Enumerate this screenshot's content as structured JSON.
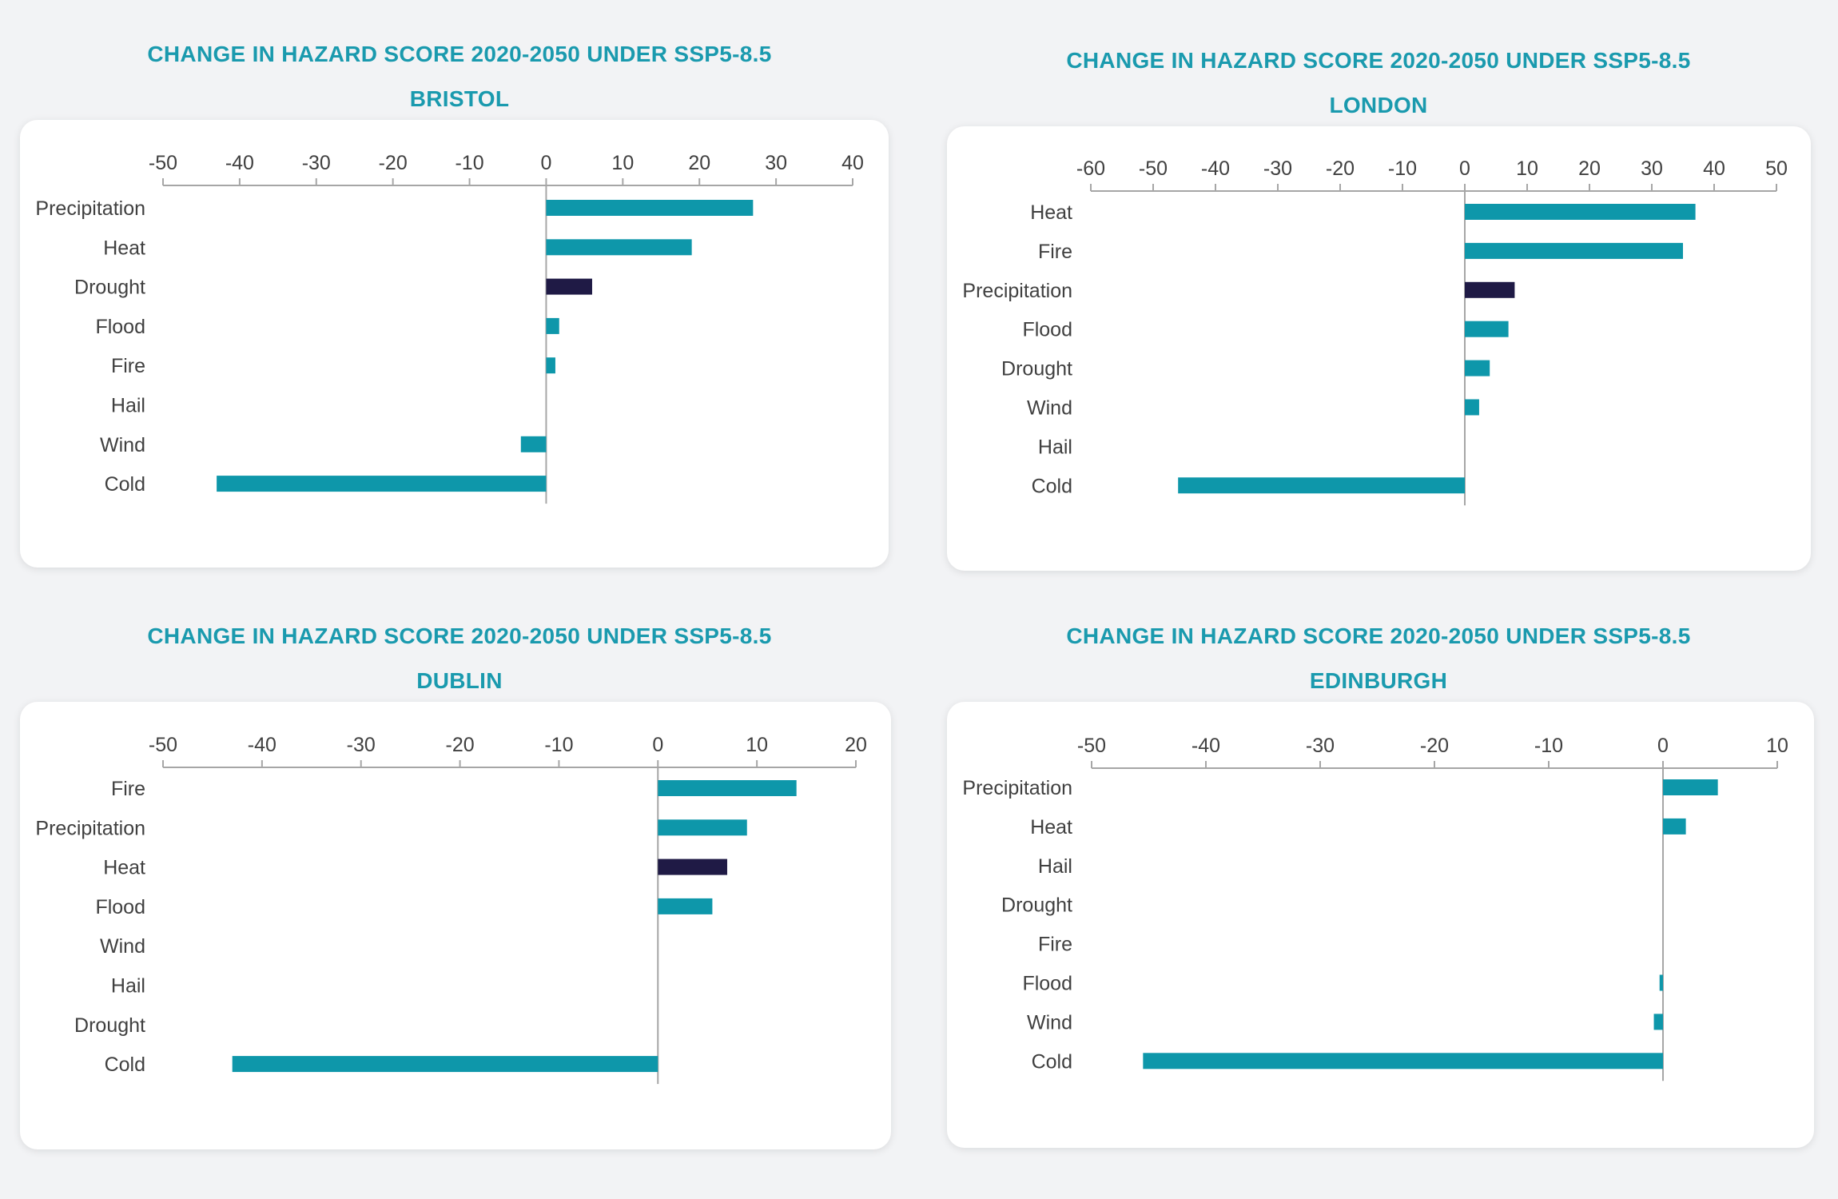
{
  "colors": {
    "title": "#1a9aae",
    "bar": "#0e97aa",
    "highlight": "#1f1a45",
    "axis": "#a6a6a6",
    "text": "#404040"
  },
  "chart_data": [
    {
      "type": "bar",
      "orientation": "horizontal",
      "title": "CHANGE IN HAZARD SCORE 2020-2050 UNDER SSP5-8.5",
      "subtitle": "BRISTOL",
      "categories": [
        "Precipitation",
        "Heat",
        "Drought",
        "Flood",
        "Fire",
        "Hail",
        "Wind",
        "Cold"
      ],
      "values": [
        27,
        19,
        6,
        1.7,
        1.2,
        0,
        -3.3,
        -43
      ],
      "highlight_index": 2,
      "xlim": [
        -50,
        40
      ],
      "ticks": [
        "-50",
        "-40",
        "-30",
        "-20",
        "-10",
        "0",
        "10",
        "20",
        "30",
        "40"
      ]
    },
    {
      "type": "bar",
      "orientation": "horizontal",
      "title": "CHANGE IN HAZARD SCORE 2020-2050 UNDER SSP5-8.5",
      "subtitle": "LONDON",
      "categories": [
        "Heat",
        "Fire",
        "Precipitation",
        "Flood",
        "Drought",
        "Wind",
        "Hail",
        "Cold"
      ],
      "values": [
        37,
        35,
        8,
        7,
        4,
        2.3,
        0,
        -46
      ],
      "highlight_index": 2,
      "xlim": [
        -60,
        50
      ],
      "ticks": [
        "-60",
        "-50",
        "-40",
        "-30",
        "-20",
        "-10",
        "0",
        "10",
        "20",
        "30",
        "40",
        "50"
      ]
    },
    {
      "type": "bar",
      "orientation": "horizontal",
      "title": "CHANGE IN HAZARD SCORE 2020-2050 UNDER SSP5-8.5",
      "subtitle": "DUBLIN",
      "categories": [
        "Fire",
        "Precipitation",
        "Heat",
        "Flood",
        "Wind",
        "Hail",
        "Drought",
        "Cold"
      ],
      "values": [
        14,
        9,
        7,
        5.5,
        0,
        0,
        0,
        -43
      ],
      "highlight_index": 2,
      "xlim": [
        -50,
        20
      ],
      "ticks": [
        "-50",
        "-40",
        "-30",
        "-20",
        "-10",
        "0",
        "10",
        "20"
      ]
    },
    {
      "type": "bar",
      "orientation": "horizontal",
      "title": "CHANGE IN HAZARD SCORE 2020-2050 UNDER SSP5-8.5",
      "subtitle": "EDINBURGH",
      "categories": [
        "Precipitation",
        "Heat",
        "Hail",
        "Drought",
        "Fire",
        "Flood",
        "Wind",
        "Cold"
      ],
      "values": [
        4.8,
        2,
        0,
        0,
        0,
        -0.3,
        -0.8,
        -45.5
      ],
      "highlight_index": -1,
      "xlim": [
        -50,
        10
      ],
      "ticks": [
        "-50",
        "-40",
        "-30",
        "-20",
        "-10",
        "0",
        "10"
      ]
    }
  ]
}
